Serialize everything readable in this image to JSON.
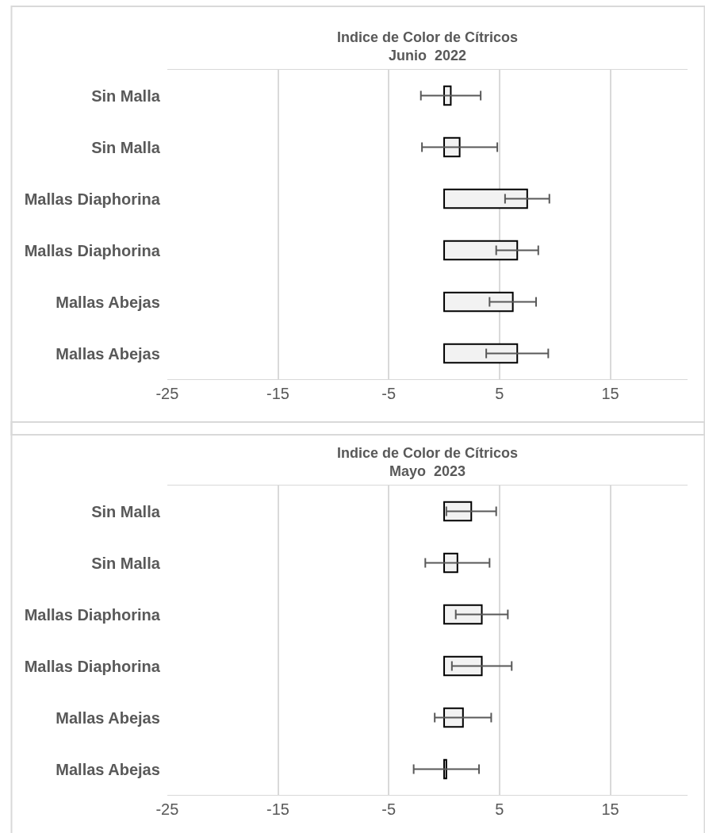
{
  "chart_data": [
    {
      "type": "bar",
      "orientation": "horizontal",
      "title": "Indice de Color de Cítricos",
      "subtitle": "Junio  2022",
      "categories": [
        "Sin Malla",
        "Sin Malla",
        "Mallas Diaphorina",
        "Mallas Diaphorina",
        "Mallas Abejas",
        "Mallas Abejas"
      ],
      "values": [
        0.6,
        1.4,
        7.5,
        6.6,
        6.2,
        6.6
      ],
      "errors": [
        2.7,
        3.4,
        2.0,
        1.9,
        2.1,
        2.8
      ],
      "color": "#f2f2f2",
      "xlim": [
        -25,
        22
      ],
      "xticks": [
        -25,
        -15,
        -5,
        5,
        15
      ],
      "grid": "x"
    },
    {
      "type": "bar",
      "orientation": "horizontal",
      "title": "Indice de Color de Cítricos",
      "subtitle": "Mayo  2023",
      "categories": [
        "Sin Malla",
        "Sin Malla",
        "Mallas Diaphorina",
        "Mallas Diaphorina",
        "Mallas Abejas",
        "Mallas Abejas"
      ],
      "values": [
        2.45,
        1.2,
        3.4,
        3.4,
        1.7,
        0.2
      ],
      "errors": [
        2.25,
        2.9,
        2.35,
        2.7,
        2.55,
        2.95
      ],
      "color": "#f2f2f2",
      "xlim": [
        -25,
        22
      ],
      "xticks": [
        -25,
        -15,
        -5,
        5,
        15
      ],
      "grid": "x"
    }
  ]
}
